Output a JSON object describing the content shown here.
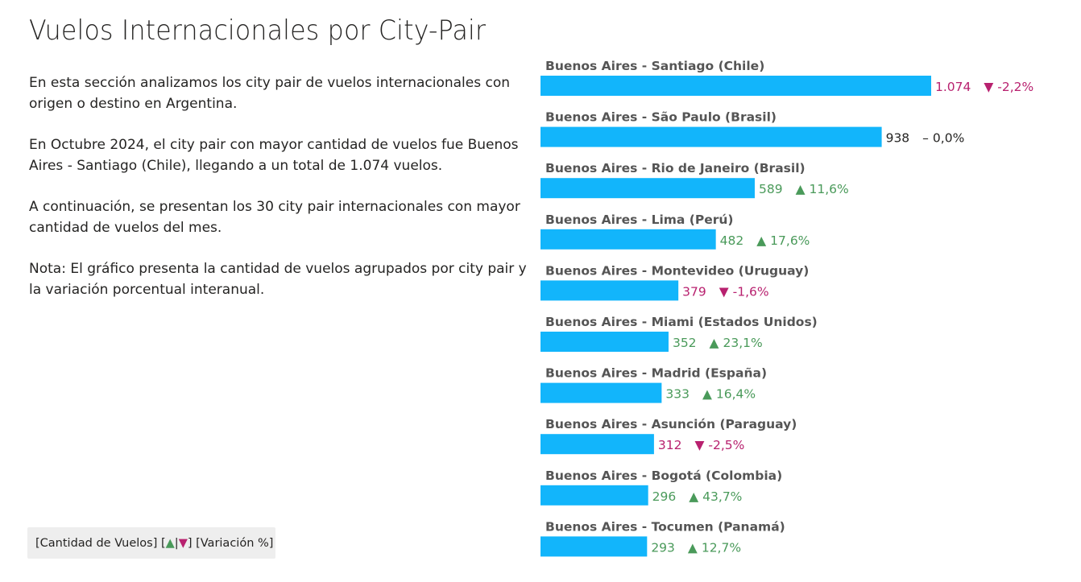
{
  "title": "Vuelos Internacionales por City-Pair",
  "description": [
    "En esta sección analizamos los city pair de vuelos internacionales con origen o destino en Argentina.",
    "En Octubre 2024, el city pair con mayor cantidad de vuelos fue Buenos Aires - Santiago (Chile), llegando a un total de 1.074 vuelos.",
    "A continuación, se presentan los 30 city pair internacionales con mayor cantidad de vuelos del mes.",
    "Nota: El gráfico presenta la cantidad de vuelos agrupados por city pair y la variación porcentual interanual."
  ],
  "legend": {
    "prefix": "[Cantidad de Vuelos] [",
    "up_symbol": "▲",
    "separator": "|",
    "down_symbol": "▼",
    "suffix": "] [Variación %]"
  },
  "colors": {
    "bar": "#12b5fb",
    "positive": "#4a9a5a",
    "negative": "#b8216f",
    "neutral": "#252423",
    "label": "#555555"
  },
  "chart_data": {
    "type": "bar",
    "orientation": "horizontal",
    "categories": [
      "Buenos Aires - Santiago (Chile)",
      "Buenos Aires - São Paulo (Brasil)",
      "Buenos Aires - Rio de Janeiro (Brasil)",
      "Buenos Aires - Lima (Perú)",
      "Buenos Aires - Montevideo (Uruguay)",
      "Buenos Aires - Miami (Estados Unidos)",
      "Buenos Aires - Madrid (España)",
      "Buenos Aires - Asunción (Paraguay)",
      "Buenos Aires - Bogotá (Colombia)",
      "Buenos Aires - Tocumen (Panamá)"
    ],
    "values": [
      1074,
      938,
      589,
      482,
      379,
      352,
      333,
      312,
      296,
      293
    ],
    "value_labels": [
      "1.074",
      "938",
      "589",
      "482",
      "379",
      "352",
      "333",
      "312",
      "296",
      "293"
    ],
    "variation_labels": [
      "-2,2%",
      "0,0%",
      "11,6%",
      "17,6%",
      "-1,6%",
      "23,1%",
      "16,4%",
      "-2,5%",
      "43,7%",
      "12,7%"
    ],
    "variation_direction": [
      "down",
      "flat",
      "up",
      "up",
      "down",
      "up",
      "up",
      "down",
      "up",
      "up"
    ],
    "direction_symbols": {
      "up": "▲",
      "down": "▼",
      "flat": "–"
    },
    "xlim": [
      0,
      1074
    ]
  }
}
